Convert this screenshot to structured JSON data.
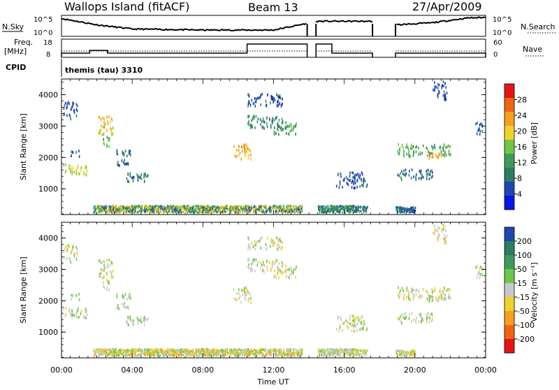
{
  "header": {
    "station": "Wallops Island (fitACF)",
    "beam": "Beam 13",
    "date": "27/Apr/2009"
  },
  "strips": {
    "nsky_label": "N.Sky",
    "nsearch_label": "N.Search",
    "noise_ticks": [
      "10^5",
      "10^0"
    ],
    "freq_label": "Freq.",
    "freq_unit": "[MHz]",
    "freq_ticks": [
      "18",
      "8"
    ],
    "nave_label": "Nave",
    "nave_ticks": [
      "60",
      "0"
    ],
    "cpid_label": "CPID",
    "cpid_value": "themis (tau) 3310"
  },
  "colors": {
    "power": [
      "#0a14e6",
      "#1e46b4",
      "#2d7d64",
      "#3c9b5a",
      "#6ec846",
      "#f0d228",
      "#f5a01e",
      "#f06414",
      "#e61414"
    ],
    "velocity": [
      "#e61414",
      "#f06414",
      "#f5a01e",
      "#f0d228",
      "#c8c8c8",
      "#6ec846",
      "#3c9b5a",
      "#2d7d64",
      "#1e46b4"
    ],
    "line": "#000000"
  },
  "chart_data": [
    {
      "type": "heatmap",
      "name_key": "power",
      "ylabel": "Slant Range [km]",
      "colorbar_label": "Power [dB]",
      "colorbar_ticks": [
        "28",
        "24",
        "20",
        "16",
        "12",
        "8",
        "4"
      ],
      "colorbar_range": [
        0,
        32
      ],
      "xlim": [
        0,
        24
      ],
      "ylim": [
        180,
        4500
      ],
      "yticks": [
        "1000",
        "2000",
        "3000",
        "4000"
      ],
      "ytick_values": [
        1000,
        2000,
        3000,
        4000
      ],
      "xticks": [
        "00:00",
        "04:00",
        "08:00",
        "12:00",
        "16:00",
        "20:00",
        "00:00"
      ],
      "patches": [
        {
          "t": [
            0.1,
            1.5
          ],
          "r": [
            1400,
            1750
          ],
          "v": 18
        },
        {
          "t": [
            0.1,
            0.9
          ],
          "r": [
            3200,
            3750
          ],
          "v": 6
        },
        {
          "t": [
            0.5,
            1.0
          ],
          "r": [
            2000,
            2200
          ],
          "v": 5
        },
        {
          "t": [
            2.0,
            2.9
          ],
          "r": [
            2700,
            3300
          ],
          "v": 20
        },
        {
          "t": [
            2.3,
            2.7
          ],
          "r": [
            2300,
            2700
          ],
          "v": 14
        },
        {
          "t": [
            3.1,
            3.9
          ],
          "r": [
            1700,
            2200
          ],
          "v": 8
        },
        {
          "t": [
            3.5,
            4.9
          ],
          "r": [
            1200,
            1500
          ],
          "v": 9
        },
        {
          "t": [
            9.7,
            10.7
          ],
          "r": [
            1900,
            2400
          ],
          "v": 22
        },
        {
          "t": [
            10.5,
            12.5
          ],
          "r": [
            2900,
            3300
          ],
          "v": 10
        },
        {
          "t": [
            12.0,
            13.3
          ],
          "r": [
            2700,
            3100
          ],
          "v": 12
        },
        {
          "t": [
            10.5,
            12.5
          ],
          "r": [
            3600,
            4000
          ],
          "v": 6
        },
        {
          "t": [
            15.5,
            17.3
          ],
          "r": [
            1000,
            1500
          ],
          "v": 6
        },
        {
          "t": [
            19.0,
            22.0
          ],
          "r": [
            2000,
            2400
          ],
          "v": 14
        },
        {
          "t": [
            20.5,
            21.5
          ],
          "r": [
            1950,
            2200
          ],
          "v": 22
        },
        {
          "t": [
            19.0,
            21.0
          ],
          "r": [
            1250,
            1600
          ],
          "v": 8
        },
        {
          "t": [
            21.0,
            21.8
          ],
          "r": [
            3800,
            4400
          ],
          "v": 5
        },
        {
          "t": [
            23.4,
            23.9
          ],
          "r": [
            2700,
            3100
          ],
          "v": 6
        }
      ],
      "floor": {
        "t": [
          1.8,
          13.6
        ],
        "r": [
          230,
          450
        ],
        "vmin": 4,
        "vmax": 24
      },
      "floor2": {
        "t": [
          14.5,
          17.3
        ],
        "r": [
          230,
          450
        ],
        "vmin": 4,
        "vmax": 16
      },
      "floor3": {
        "t": [
          18.9,
          20.0
        ],
        "r": [
          230,
          400
        ],
        "vmin": 4,
        "vmax": 12
      }
    },
    {
      "type": "heatmap",
      "name_key": "velocity",
      "ylabel": "Slant Range [km]",
      "colorbar_label": "Velocity [m s⁻¹]",
      "colorbar_ticks": [
        "200",
        "100",
        "50",
        "15",
        "-15",
        "-50",
        "-100",
        "-200"
      ],
      "colorbar_range": [
        -250,
        250
      ],
      "xlim": [
        0,
        24
      ],
      "ylim": [
        180,
        4500
      ],
      "yticks": [
        "1000",
        "2000",
        "3000",
        "4000"
      ],
      "ytick_values": [
        1000,
        2000,
        3000,
        4000
      ],
      "xticks": [
        "00:00",
        "04:00",
        "08:00",
        "12:00",
        "16:00",
        "20:00",
        "00:00"
      ],
      "xlabel": "Time UT",
      "patches": [
        {
          "t": [
            0.1,
            1.5
          ],
          "r": [
            1400,
            1750
          ],
          "v": 0
        },
        {
          "t": [
            0.1,
            0.9
          ],
          "r": [
            3200,
            3750
          ],
          "v": 0
        },
        {
          "t": [
            0.5,
            1.0
          ],
          "r": [
            2000,
            2200
          ],
          "v": 30
        },
        {
          "t": [
            2.0,
            2.9
          ],
          "r": [
            2700,
            3300
          ],
          "v": 0
        },
        {
          "t": [
            2.3,
            2.7
          ],
          "r": [
            2300,
            2700
          ],
          "v": 0
        },
        {
          "t": [
            3.1,
            3.9
          ],
          "r": [
            1700,
            2200
          ],
          "v": 30
        },
        {
          "t": [
            3.5,
            4.9
          ],
          "r": [
            1200,
            1500
          ],
          "v": 30
        },
        {
          "t": [
            9.7,
            10.7
          ],
          "r": [
            1900,
            2400
          ],
          "v": 0
        },
        {
          "t": [
            10.5,
            12.5
          ],
          "r": [
            2900,
            3300
          ],
          "v": 0
        },
        {
          "t": [
            12.0,
            13.3
          ],
          "r": [
            2700,
            3100
          ],
          "v": 0
        },
        {
          "t": [
            10.5,
            12.5
          ],
          "r": [
            3600,
            4000
          ],
          "v": 0
        },
        {
          "t": [
            15.5,
            17.3
          ],
          "r": [
            1000,
            1500
          ],
          "v": 0
        },
        {
          "t": [
            19.0,
            22.0
          ],
          "r": [
            2000,
            2400
          ],
          "v": 0
        },
        {
          "t": [
            20.5,
            21.5
          ],
          "r": [
            1950,
            2200
          ],
          "v": 0
        },
        {
          "t": [
            19.0,
            21.0
          ],
          "r": [
            1250,
            1600
          ],
          "v": 0
        },
        {
          "t": [
            21.0,
            21.8
          ],
          "r": [
            3800,
            4400
          ],
          "v": -30
        },
        {
          "t": [
            23.4,
            23.9
          ],
          "r": [
            2700,
            3100
          ],
          "v": 0
        }
      ],
      "floor": {
        "t": [
          1.8,
          13.6
        ],
        "r": [
          230,
          450
        ],
        "vmin": -120,
        "vmax": 80
      },
      "floor2": {
        "t": [
          14.5,
          17.3
        ],
        "r": [
          230,
          450
        ],
        "vmin": -60,
        "vmax": 60
      },
      "floor3": {
        "t": [
          18.9,
          20.0
        ],
        "r": [
          230,
          400
        ],
        "vmin": -60,
        "vmax": 60
      }
    }
  ],
  "noise_series": {
    "gaps": [
      [
        13.9,
        14.4
      ],
      [
        17.6,
        18.9
      ]
    ],
    "sky_levels": [
      [
        0.0,
        0.85
      ],
      [
        2.0,
        0.55
      ],
      [
        4.0,
        0.35
      ],
      [
        8.0,
        0.3
      ],
      [
        12.0,
        0.3
      ],
      [
        14.5,
        0.72
      ],
      [
        17.5,
        0.72
      ],
      [
        19.0,
        0.55
      ],
      [
        21.0,
        0.65
      ],
      [
        23.0,
        0.88
      ],
      [
        24.0,
        0.9
      ]
    ]
  },
  "freq_series": {
    "levels": [
      [
        0.0,
        10.3
      ],
      [
        1.6,
        11.8
      ],
      [
        2.6,
        10.3
      ],
      [
        10.5,
        15.3
      ],
      [
        13.9,
        15.3
      ],
      [
        14.4,
        15.3
      ],
      [
        15.3,
        10.3
      ],
      [
        17.6,
        10.3
      ],
      [
        19.0,
        10.3
      ],
      [
        24.0,
        9.5
      ]
    ]
  }
}
